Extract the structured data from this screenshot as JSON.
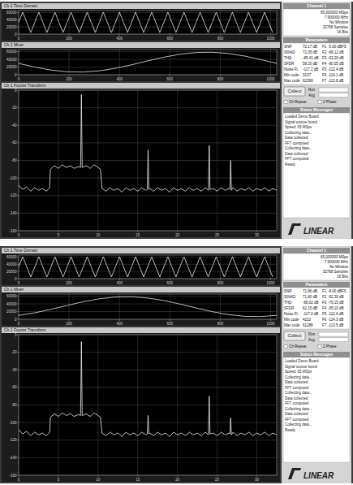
{
  "chart_data": [
    {
      "type": "line",
      "title": "Ch 1 Time Domain",
      "color": "#e6e6e6",
      "grid": true,
      "x": [
        0,
        16,
        32,
        48,
        64,
        80,
        96,
        112,
        128,
        144,
        160,
        176,
        192,
        208,
        224,
        240,
        256,
        272,
        288,
        304,
        320,
        336,
        352,
        368,
        384,
        400,
        416,
        432,
        448,
        464,
        480,
        496,
        512,
        528,
        544,
        560,
        576,
        592,
        608,
        624,
        640,
        656,
        672,
        688,
        704,
        720,
        736,
        752,
        768,
        784,
        800,
        816,
        832,
        848,
        864,
        880,
        896,
        912,
        928,
        944,
        960,
        976,
        992,
        1008
      ],
      "values": [
        32768,
        61000,
        32768,
        4500,
        32768,
        61000,
        32768,
        4500,
        32768,
        61000,
        32768,
        4500,
        32768,
        61000,
        32768,
        4500,
        32768,
        61000,
        32768,
        4500,
        32768,
        61000,
        32768,
        4500,
        32768,
        61000,
        32768,
        4500,
        32768,
        61000,
        32768,
        4500,
        32768,
        61000,
        32768,
        4500,
        32768,
        61000,
        32768,
        4500,
        32768,
        61000,
        32768,
        4500,
        32768,
        61000,
        32768,
        4500,
        32768,
        61000,
        32768,
        4500,
        32768,
        61000,
        32768,
        4500,
        32768,
        61000,
        32768,
        4500,
        32768,
        61000,
        32768,
        4500
      ],
      "xlim": [
        0,
        1024
      ],
      "ylim": [
        0,
        65536
      ],
      "xticks": [
        0,
        200,
        400,
        600,
        800,
        1000
      ],
      "yticks": [
        0,
        20000,
        40000,
        60000
      ]
    },
    {
      "type": "line",
      "title": "Ch 1 Mixer",
      "color": "#e6e6e6",
      "grid": true,
      "x": [
        0,
        64,
        128,
        192,
        256,
        320,
        384,
        448,
        512,
        576,
        640,
        704,
        768,
        832,
        896,
        960,
        1024
      ],
      "values": [
        29518,
        19872,
        12228,
        7678,
        6976,
        10174,
        16830,
        25904,
        36018,
        45664,
        53308,
        57858,
        58560,
        55362,
        48706,
        39632,
        29518
      ],
      "xlim": [
        0,
        1024
      ],
      "ylim": [
        0,
        65536
      ],
      "xticks": [
        0,
        200,
        400,
        600,
        800,
        1000
      ],
      "yticks": [
        0,
        20000,
        40000,
        60000
      ]
    },
    {
      "type": "line",
      "title": "Ch 1 Fourier Transform",
      "color": "#f0f0f0",
      "grid": true,
      "x": [
        0,
        0.5,
        1,
        1.5,
        2,
        2.5,
        3,
        3.5,
        3.9,
        4,
        4.5,
        5,
        5.5,
        6,
        6.5,
        7,
        7.5,
        7.8,
        7.9,
        8,
        8.5,
        9,
        9.5,
        10,
        10.3,
        10.5,
        11,
        11.5,
        12,
        12.5,
        13,
        13.5,
        14,
        14.5,
        15,
        15.5,
        16,
        16.2,
        16.3,
        16.4,
        16.5,
        17,
        17.5,
        18,
        18.5,
        19,
        19.5,
        20,
        20.5,
        21,
        21.5,
        22,
        22.5,
        23,
        23.5,
        23.9,
        24,
        24.1,
        24.5,
        25,
        25.5,
        26,
        26.5,
        26.6,
        26.7,
        26.8,
        27,
        27.5,
        28,
        28.5,
        29,
        29.5,
        30,
        30.5,
        31,
        31.5,
        32,
        32.5
      ],
      "values": [
        -108,
        -113,
        -110,
        -115,
        -111,
        -114,
        -112,
        -115,
        -111,
        -90,
        -86,
        -89,
        -85,
        -88,
        -86,
        -89,
        -87,
        -88,
        -5,
        -88,
        -86,
        -89,
        -85,
        -88,
        -90,
        -112,
        -115,
        -111,
        -114,
        -112,
        -116,
        -111,
        -114,
        -112,
        -115,
        -111,
        -114,
        -113,
        -68,
        -113,
        -112,
        -115,
        -111,
        -114,
        -112,
        -116,
        -111,
        -114,
        -112,
        -115,
        -111,
        -114,
        -112,
        -115,
        -111,
        -114,
        -63,
        -113,
        -112,
        -115,
        -111,
        -114,
        -112,
        -113,
        -80,
        -114,
        -111,
        -115,
        -112,
        -114,
        -111,
        -115,
        -112,
        -114,
        -111,
        -115,
        -112,
        -114
      ],
      "xlim": [
        0,
        32.5
      ],
      "ylim": [
        -160,
        0
      ],
      "xticks": [
        0,
        5,
        10,
        15,
        20,
        25,
        30
      ],
      "yticks": [
        -160,
        -140,
        -120,
        -100,
        -80,
        -60,
        -40,
        -20,
        0
      ]
    },
    {
      "type": "line",
      "title": "Ch 1 Time Domain",
      "color": "#e6e6e6",
      "grid": true,
      "x": [
        0,
        16,
        32,
        48,
        64,
        80,
        96,
        112,
        128,
        144,
        160,
        176,
        192,
        208,
        224,
        240,
        256,
        272,
        288,
        304,
        320,
        336,
        352,
        368,
        384,
        400,
        416,
        432,
        448,
        464,
        480,
        496,
        512,
        528,
        544,
        560,
        576,
        592,
        608,
        624,
        640,
        656,
        672,
        688,
        704,
        720,
        736,
        752,
        768,
        784,
        800,
        816,
        832,
        848,
        864,
        880,
        896,
        912,
        928,
        944,
        960,
        976,
        992,
        1008
      ],
      "values": [
        32768,
        61000,
        32768,
        4500,
        32768,
        61000,
        32768,
        4500,
        32768,
        61000,
        32768,
        4500,
        32768,
        61000,
        32768,
        4500,
        32768,
        61000,
        32768,
        4500,
        32768,
        61000,
        32768,
        4500,
        32768,
        61000,
        32768,
        4500,
        32768,
        61000,
        32768,
        4500,
        32768,
        61000,
        32768,
        4500,
        32768,
        61000,
        32768,
        4500,
        32768,
        61000,
        32768,
        4500,
        32768,
        61000,
        32768,
        4500,
        32768,
        61000,
        32768,
        4500,
        32768,
        61000,
        32768,
        4500,
        32768,
        61000,
        32768,
        4500,
        32768,
        61000,
        32768,
        4500
      ],
      "xlim": [
        0,
        1024
      ],
      "ylim": [
        0,
        65536
      ],
      "xticks": [
        0,
        200,
        400,
        600,
        800,
        1000
      ],
      "yticks": [
        0,
        20000,
        40000,
        60000
      ]
    },
    {
      "type": "line",
      "title": "Ch 1 Mixer",
      "color": "#e6e6e6",
      "grid": true,
      "x": [
        0,
        64,
        128,
        192,
        256,
        320,
        384,
        448,
        512,
        576,
        640,
        704,
        768,
        832,
        896,
        960,
        1024
      ],
      "values": [
        10174,
        16830,
        25904,
        36018,
        45664,
        53308,
        57858,
        58560,
        55362,
        48706,
        39632,
        29518,
        19872,
        12228,
        7678,
        6976,
        10174
      ],
      "xlim": [
        0,
        1024
      ],
      "ylim": [
        0,
        65536
      ],
      "xticks": [
        0,
        200,
        400,
        600,
        800,
        1000
      ],
      "yticks": [
        0,
        20000,
        40000,
        60000
      ]
    },
    {
      "type": "line",
      "title": "Ch 1 Fourier Transform",
      "color": "#f0f0f0",
      "grid": true,
      "x": [
        0,
        0.5,
        1,
        1.5,
        2,
        2.5,
        3,
        3.5,
        3.9,
        4,
        4.5,
        5,
        5.5,
        6,
        6.5,
        7,
        7.5,
        7.8,
        7.9,
        8,
        8.5,
        9,
        9.5,
        10,
        10.3,
        10.5,
        11,
        11.5,
        12,
        12.5,
        13,
        13.5,
        14,
        14.5,
        15,
        15.5,
        16,
        16.2,
        16.3,
        16.4,
        16.5,
        17,
        17.5,
        18,
        18.5,
        19,
        19.5,
        20,
        20.5,
        21,
        21.5,
        22,
        22.5,
        23,
        23.5,
        23.9,
        24,
        24.1,
        24.5,
        25,
        25.5,
        26,
        26.5,
        26.6,
        26.7,
        26.8,
        27,
        27.5,
        28,
        28.5,
        29,
        29.5,
        30,
        30.5,
        31,
        31.5,
        32,
        32.5
      ],
      "values": [
        -108,
        -113,
        -110,
        -115,
        -111,
        -114,
        -112,
        -115,
        -111,
        -94,
        -90,
        -93,
        -89,
        -92,
        -90,
        -93,
        -91,
        -92,
        -8,
        -92,
        -90,
        -93,
        -89,
        -92,
        -94,
        -112,
        -115,
        -111,
        -114,
        -112,
        -116,
        -111,
        -114,
        -112,
        -115,
        -111,
        -114,
        -113,
        -92,
        -113,
        -112,
        -115,
        -111,
        -114,
        -112,
        -116,
        -111,
        -114,
        -112,
        -115,
        -111,
        -114,
        -112,
        -115,
        -111,
        -114,
        -70,
        -113,
        -112,
        -115,
        -111,
        -114,
        -112,
        -113,
        -95,
        -114,
        -111,
        -115,
        -112,
        -114,
        -111,
        -115,
        -112,
        -114,
        -111,
        -115,
        -112,
        -114
      ],
      "xlim": [
        0,
        32.5
      ],
      "ylim": [
        -160,
        0
      ],
      "xticks": [
        0,
        5,
        10,
        15,
        20,
        25,
        30
      ],
      "yticks": [
        -160,
        -140,
        -120,
        -100,
        -80,
        -60,
        -40,
        -20,
        0
      ]
    }
  ],
  "captures": [
    {
      "header": "Channel 1",
      "info": [
        "65.000000 MSps",
        "7.900000 MHz",
        "No Window",
        "32768 Samples",
        "16 Bits"
      ],
      "parameters_title": "Parameters",
      "parameters": [
        [
          "SNR",
          "72.17 dB",
          "F1",
          "-5.00 dBFS"
        ],
        [
          "SINAD",
          "72.05 dB",
          "F2",
          "-68.12 dB"
        ],
        [
          "THD",
          "-85.41 dB",
          "F3",
          "-63.20 dB"
        ],
        [
          "SFDR",
          "58.20 dB",
          "F4",
          "-80.05 dB"
        ],
        [
          "Noise Fl.",
          "-117.2 dB",
          "F5",
          "-112.4 dB"
        ],
        [
          "Min code",
          "3137",
          "F6",
          "-114.1 dB"
        ],
        [
          "Max code",
          "62399",
          "F7",
          "-113.8 dB"
        ]
      ],
      "button": "Collect",
      "options": [
        "Run",
        "Avg"
      ],
      "checks": [
        "Ch Repeat",
        "2 Phase"
      ],
      "status_title": "Status Messages",
      "status": [
        "Loaded Demo Board",
        "Signal source found",
        "Speed: 65 MSps",
        "Collecting data...",
        "Data collected",
        "FFT computed",
        "Collecting data...",
        "Data collected",
        "FFT computed",
        "Ready"
      ],
      "logo": "LINEAR"
    },
    {
      "header": "Channel 1",
      "info": [
        "65.000000 MSps",
        "7.900000 MHz",
        "No Window",
        "32768 Samples",
        "16 Bits"
      ],
      "parameters_title": "Parameters",
      "parameters": [
        [
          "SNR",
          "71.86 dB",
          "F1",
          "-8.00 dBFS"
        ],
        [
          "SINAD",
          "71.80 dB",
          "F2",
          "-92.30 dB"
        ],
        [
          "THD",
          "-88.02 dB",
          "F3",
          "-70.15 dB"
        ],
        [
          "SFDR",
          "62.15 dB",
          "F4",
          "-95.10 dB"
        ],
        [
          "Noise Fl.",
          "-117.0 dB",
          "F5",
          "-112.6 dB"
        ],
        [
          "Min code",
          "4210",
          "F6",
          "-114.3 dB"
        ],
        [
          "Max code",
          "61288",
          "F7",
          "-113.5 dB"
        ]
      ],
      "button": "Collect",
      "options": [
        "Run",
        "Avg"
      ],
      "checks": [
        "Ch Repeat",
        "2 Phase"
      ],
      "status_title": "Status Messages",
      "status": [
        "Loaded Demo Board",
        "Signal source found",
        "Speed: 65 MSps",
        "Collecting data...",
        "Data collected",
        "FFT computed",
        "Collecting data...",
        "Data collected",
        "FFT computed",
        "Collecting data...",
        "Data collected",
        "FFT computed",
        "Collecting data...",
        "Ready"
      ],
      "logo": "LINEAR"
    }
  ]
}
